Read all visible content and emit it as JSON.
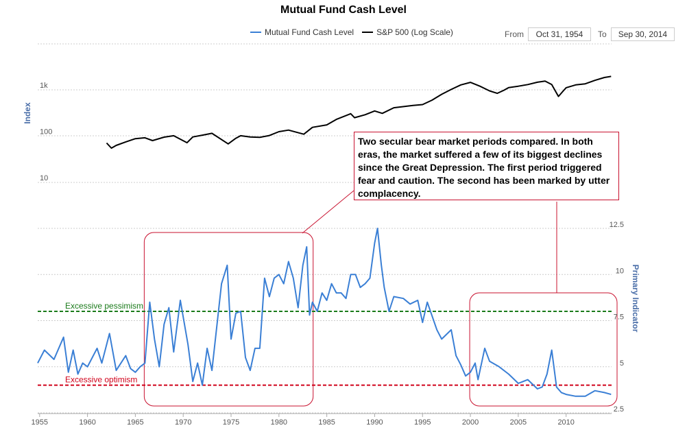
{
  "title": "Mutual Fund Cash Level",
  "legend": {
    "cash_label": "Mutual Fund Cash Level",
    "sp_label": "S&P 500 (Log Scale)"
  },
  "range": {
    "from_label": "From",
    "from_value": "Oct 31, 1954",
    "to_label": "To",
    "to_value": "Sep 30, 2014"
  },
  "annotation": "Two secular bear market periods compared. In both eras, the market suffered a few of its biggest declines since the Great Depression. The first period triggered fear and caution. The second has been marked by utter complacency.",
  "colors": {
    "cash": "#3a7fd5",
    "sp500": "#000000",
    "pessimism": "#1a7a1a",
    "optimism": "#d0021b",
    "highlight": "#c8102e"
  },
  "chart_data": {
    "type": "line",
    "x_axis": {
      "ticks": [
        "1955",
        "1960",
        "1965",
        "1970",
        "1975",
        "1980",
        "1985",
        "1990",
        "1995",
        "2000",
        "2005",
        "2010"
      ],
      "range": [
        1954.8,
        2014.75
      ]
    },
    "top_axis": {
      "label": "Index",
      "scale": "log",
      "ticks": [
        "1k",
        "100",
        "10"
      ]
    },
    "bottom_axis": {
      "label": "Primary Indicator",
      "ticks": [
        "12.5",
        "10",
        "7.5",
        "5",
        "2.5"
      ],
      "range": [
        2.5,
        12.5
      ]
    },
    "reference_lines": [
      {
        "label": "Excessive pessimism",
        "value": 8.0
      },
      {
        "label": "Excessive optimism",
        "value": 4.0
      }
    ],
    "highlight_periods": [
      [
        1966.0,
        1983.0
      ],
      [
        2000.0,
        2014.8
      ]
    ],
    "series": [
      {
        "name": "Mutual Fund Cash Level",
        "axis": "primary",
        "x": [
          1954.8,
          1955.5,
          1956.5,
          1957.5,
          1958.0,
          1958.5,
          1959.0,
          1959.5,
          1960.0,
          1961.0,
          1961.5,
          1962.3,
          1963.0,
          1964.0,
          1964.5,
          1965.0,
          1965.5,
          1966.0,
          1966.5,
          1967.0,
          1967.5,
          1968.0,
          1968.5,
          1969.0,
          1969.7,
          1970.5,
          1971.0,
          1971.5,
          1972.0,
          1972.5,
          1973.0,
          1974.0,
          1974.6,
          1975.0,
          1975.5,
          1976.0,
          1976.5,
          1977.0,
          1977.5,
          1978.0,
          1978.5,
          1979.0,
          1979.5,
          1980.0,
          1980.5,
          1981.0,
          1981.5,
          1982.0,
          1982.5,
          1982.9,
          1983.2,
          1983.5,
          1984.0,
          1984.5,
          1985.0,
          1985.5,
          1986.0,
          1986.5,
          1987.0,
          1987.5,
          1988.0,
          1988.5,
          1989.0,
          1989.5,
          1990.0,
          1990.3,
          1990.7,
          1991.0,
          1991.5,
          1992.0,
          1993.0,
          1993.7,
          1994.5,
          1995.0,
          1995.5,
          1996.5,
          1997.0,
          1998.0,
          1998.5,
          1999.0,
          1999.5,
          2000.0,
          2000.5,
          2000.8,
          2001.5,
          2002.0,
          2003.0,
          2004.0,
          2005.0,
          2006.0,
          2007.0,
          2007.5,
          2008.0,
          2008.5,
          2009.0,
          2009.5,
          2010.0,
          2011.0,
          2012.0,
          2013.0,
          2014.0,
          2014.7
        ],
        "y": [
          5.2,
          5.9,
          5.4,
          6.6,
          4.7,
          5.9,
          4.6,
          5.2,
          5.0,
          6.0,
          5.2,
          6.8,
          4.8,
          5.6,
          4.9,
          4.7,
          5.0,
          5.2,
          8.5,
          6.5,
          5.0,
          7.3,
          8.2,
          5.8,
          8.6,
          6.2,
          4.2,
          5.2,
          4.0,
          6.0,
          4.8,
          9.5,
          10.5,
          6.5,
          7.9,
          8.0,
          5.5,
          4.8,
          6.0,
          6.0,
          9.8,
          8.8,
          9.8,
          10.0,
          9.5,
          10.7,
          9.8,
          8.2,
          10.5,
          11.5,
          7.8,
          8.5,
          8.0,
          9.0,
          8.6,
          9.5,
          9.0,
          9.0,
          8.7,
          10.0,
          10.0,
          9.3,
          9.5,
          9.8,
          11.7,
          12.5,
          10.5,
          9.3,
          8.0,
          8.8,
          8.7,
          8.4,
          8.6,
          7.4,
          8.5,
          7.0,
          6.5,
          7.0,
          5.6,
          5.1,
          4.5,
          4.7,
          5.2,
          4.3,
          6.0,
          5.3,
          5.0,
          4.6,
          4.1,
          4.3,
          3.8,
          3.9,
          4.6,
          5.9,
          3.9,
          3.6,
          3.5,
          3.4,
          3.4,
          3.7,
          3.6,
          3.5
        ]
      },
      {
        "name": "S&P 500 (Log Scale)",
        "axis": "index",
        "x": [
          1962.0,
          1962.5,
          1963.0,
          1964.0,
          1965.0,
          1966.0,
          1966.8,
          1968.0,
          1969.0,
          1970.4,
          1971.0,
          1972.0,
          1973.0,
          1974.7,
          1975.5,
          1976.0,
          1977.0,
          1978.0,
          1979.0,
          1980.0,
          1981.0,
          1982.6,
          1983.5,
          1985.0,
          1986.0,
          1987.5,
          1987.9,
          1989.0,
          1990.0,
          1990.8,
          1992.0,
          1994.0,
          1995.0,
          1996.0,
          1997.0,
          1998.0,
          1999.0,
          2000.0,
          2001.0,
          2002.0,
          2002.8,
          2003.5,
          2004.0,
          2005.0,
          2006.0,
          2007.0,
          2007.8,
          2008.5,
          2009.2,
          2009.8,
          2010.0,
          2011.0,
          2012.0,
          2013.0,
          2014.0,
          2014.7
        ],
        "y": [
          71,
          55,
          63,
          75,
          88,
          92,
          80,
          95,
          102,
          72,
          96,
          105,
          115,
          68,
          90,
          102,
          96,
          94,
          103,
          125,
          135,
          110,
          155,
          175,
          230,
          305,
          250,
          290,
          350,
          310,
          410,
          460,
          480,
          600,
          800,
          1020,
          1280,
          1450,
          1200,
          950,
          840,
          980,
          1120,
          1200,
          1300,
          1460,
          1550,
          1300,
          720,
          1000,
          1110,
          1280,
          1350,
          1600,
          1850,
          1950
        ]
      }
    ]
  }
}
